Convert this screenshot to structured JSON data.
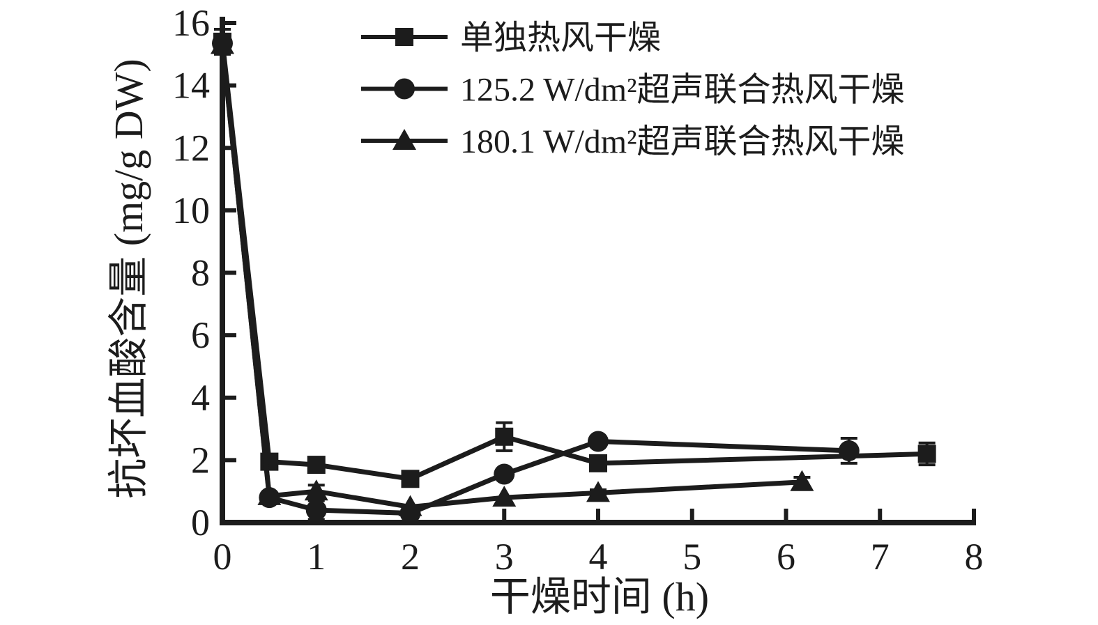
{
  "colors": {
    "ink": "#1c1c1c",
    "background": "#ffffff"
  },
  "chart_data": {
    "type": "line",
    "title": "",
    "xlabel": "干燥时间 (h)",
    "ylabel": "抗坏血酸含量 (mg/g DW)",
    "xlim": [
      0,
      8
    ],
    "ylim": [
      0,
      16
    ],
    "x_ticks": [
      0,
      1,
      2,
      3,
      4,
      5,
      6,
      7,
      8
    ],
    "y_ticks": [
      0,
      2,
      4,
      6,
      8,
      10,
      12,
      14,
      16
    ],
    "grid": false,
    "legend_position": "inside-top-left",
    "series": [
      {
        "name": "单独热风干燥",
        "marker": "square",
        "color": "#1c1c1c",
        "x": [
          0,
          0.5,
          1,
          2,
          3,
          4,
          7.5
        ],
        "y": [
          15.4,
          1.95,
          1.85,
          1.4,
          2.75,
          1.9,
          2.2
        ],
        "yerr": [
          0.4,
          0,
          0,
          0,
          0.45,
          0,
          0.35
        ]
      },
      {
        "name": "125.2 W/dm²超声联合热风干燥",
        "marker": "circle",
        "color": "#1c1c1c",
        "x": [
          0,
          0.5,
          1,
          2,
          3,
          4,
          6.67
        ],
        "y": [
          15.35,
          0.8,
          0.4,
          0.3,
          1.55,
          2.6,
          2.3
        ],
        "yerr": [
          0,
          0,
          0.3,
          0.25,
          0,
          0,
          0.4
        ]
      },
      {
        "name": "180.1 W/dm²超声联合热风干燥",
        "marker": "triangle",
        "color": "#1c1c1c",
        "x": [
          0,
          0.5,
          1,
          2,
          3,
          4,
          6.17
        ],
        "y": [
          15.3,
          0.85,
          1.0,
          0.5,
          0.8,
          0.95,
          1.3
        ],
        "yerr": [
          0,
          0,
          0.2,
          0,
          0,
          0.1,
          0.15
        ]
      }
    ]
  }
}
